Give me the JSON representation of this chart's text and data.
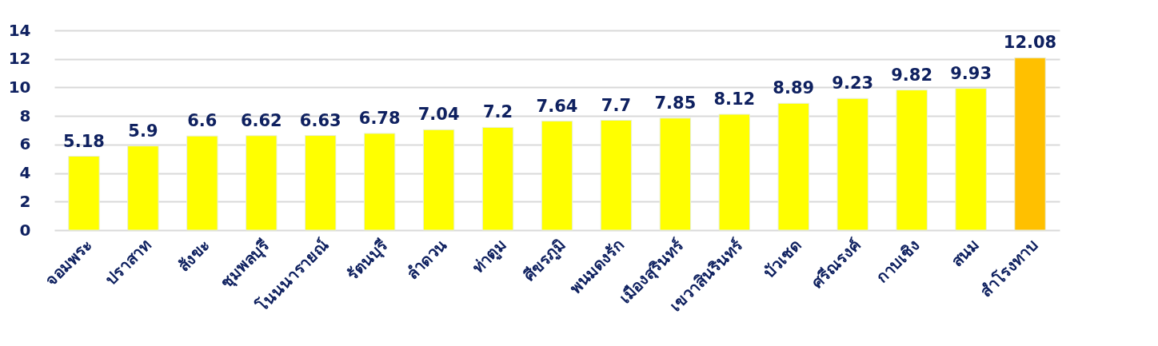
{
  "chart_data": {
    "type": "bar",
    "categories": [
      "จอมพระ",
      "ปราสาท",
      "สังขะ",
      "ชุมพลบุรี",
      "โนนนารายณ์",
      "รัตนบุรี",
      "ลำดวน",
      "ท่าตูม",
      "ศีขรภูมิ",
      "พนมดงรัก",
      "เมืองสุรินทร์",
      "เขวาสินรินทร์",
      "บัวเชด",
      "ศรีณรงค์",
      "กาบเชิง",
      "สนม",
      "สำโรงทาบ"
    ],
    "values": [
      5.18,
      5.9,
      6.6,
      6.62,
      6.63,
      6.78,
      7.04,
      7.2,
      7.64,
      7.7,
      7.85,
      8.12,
      8.89,
      9.23,
      9.82,
      9.93,
      12.08
    ],
    "colors": [
      "#ffff00",
      "#ffff00",
      "#ffff00",
      "#ffff00",
      "#ffff00",
      "#ffff00",
      "#ffff00",
      "#ffff00",
      "#ffff00",
      "#ffff00",
      "#ffff00",
      "#ffff00",
      "#ffff00",
      "#ffff00",
      "#ffff00",
      "#ffff00",
      "#ffc000"
    ],
    "ylim": [
      0,
      14
    ],
    "yticks": [
      0,
      2,
      4,
      6,
      8,
      10,
      12,
      14
    ],
    "grid": "y",
    "data_labels": true
  }
}
